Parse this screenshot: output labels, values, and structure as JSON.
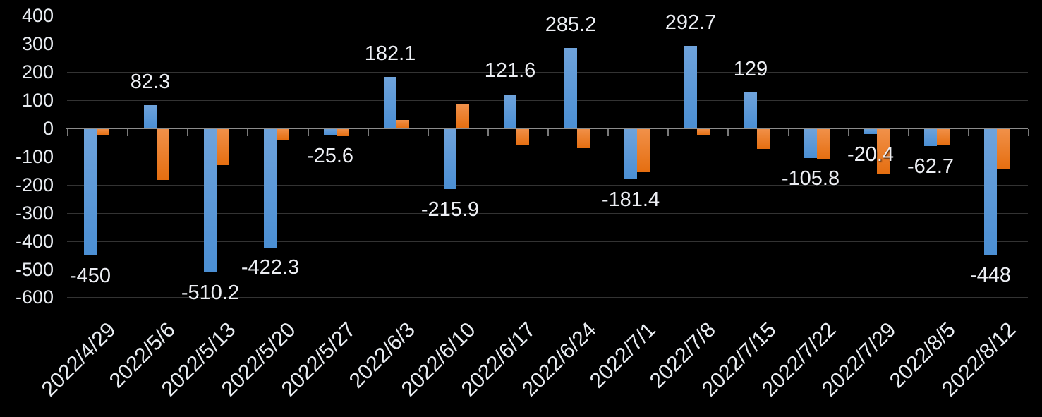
{
  "chart_data": {
    "type": "bar",
    "title": "",
    "xlabel": "",
    "ylabel": "",
    "categories": [
      "2022/4/29",
      "2022/5/6",
      "2022/5/13",
      "2022/5/20",
      "2022/5/27",
      "2022/6/3",
      "2022/6/10",
      "2022/6/17",
      "2022/6/24",
      "2022/7/1",
      "2022/7/8",
      "2022/7/15",
      "2022/7/22",
      "2022/7/29",
      "2022/8/5",
      "2022/8/12"
    ],
    "series": [
      {
        "name": "blue-series",
        "color": "#5B9BD5",
        "values": [
          -450,
          82.3,
          -510.2,
          -422.3,
          -25.6,
          182.1,
          -215.9,
          121.6,
          285.2,
          -181.4,
          292.7,
          129,
          -105.8,
          -20.4,
          -62.7,
          -448
        ],
        "data_labels": [
          "-450",
          "82.3",
          "-510.2",
          "-422.3",
          "-25.6",
          "182.1",
          "-215.9",
          "121.6",
          "285.2",
          "-181.4",
          "292.7",
          "129",
          "-105.8",
          "-20.4",
          "-62.7",
          "-448"
        ]
      },
      {
        "name": "orange-series",
        "color": "#ED7D31",
        "values": [
          -24,
          -183,
          -129,
          -39,
          -28,
          31,
          86,
          -60,
          -71,
          -156,
          -25,
          -72,
          -110,
          -160,
          -60,
          -145
        ],
        "data_labels": null
      }
    ],
    "ylim": [
      -600,
      400
    ],
    "yticks": [
      400,
      300,
      200,
      100,
      0,
      -100,
      -200,
      -300,
      -400,
      -500,
      -600
    ],
    "grid": "horizontal",
    "legend": "none",
    "background_color": "#000000",
    "axis_color": "#8C8C8C",
    "gridline_color": "#333333",
    "text_color": "#E9EDF2"
  }
}
